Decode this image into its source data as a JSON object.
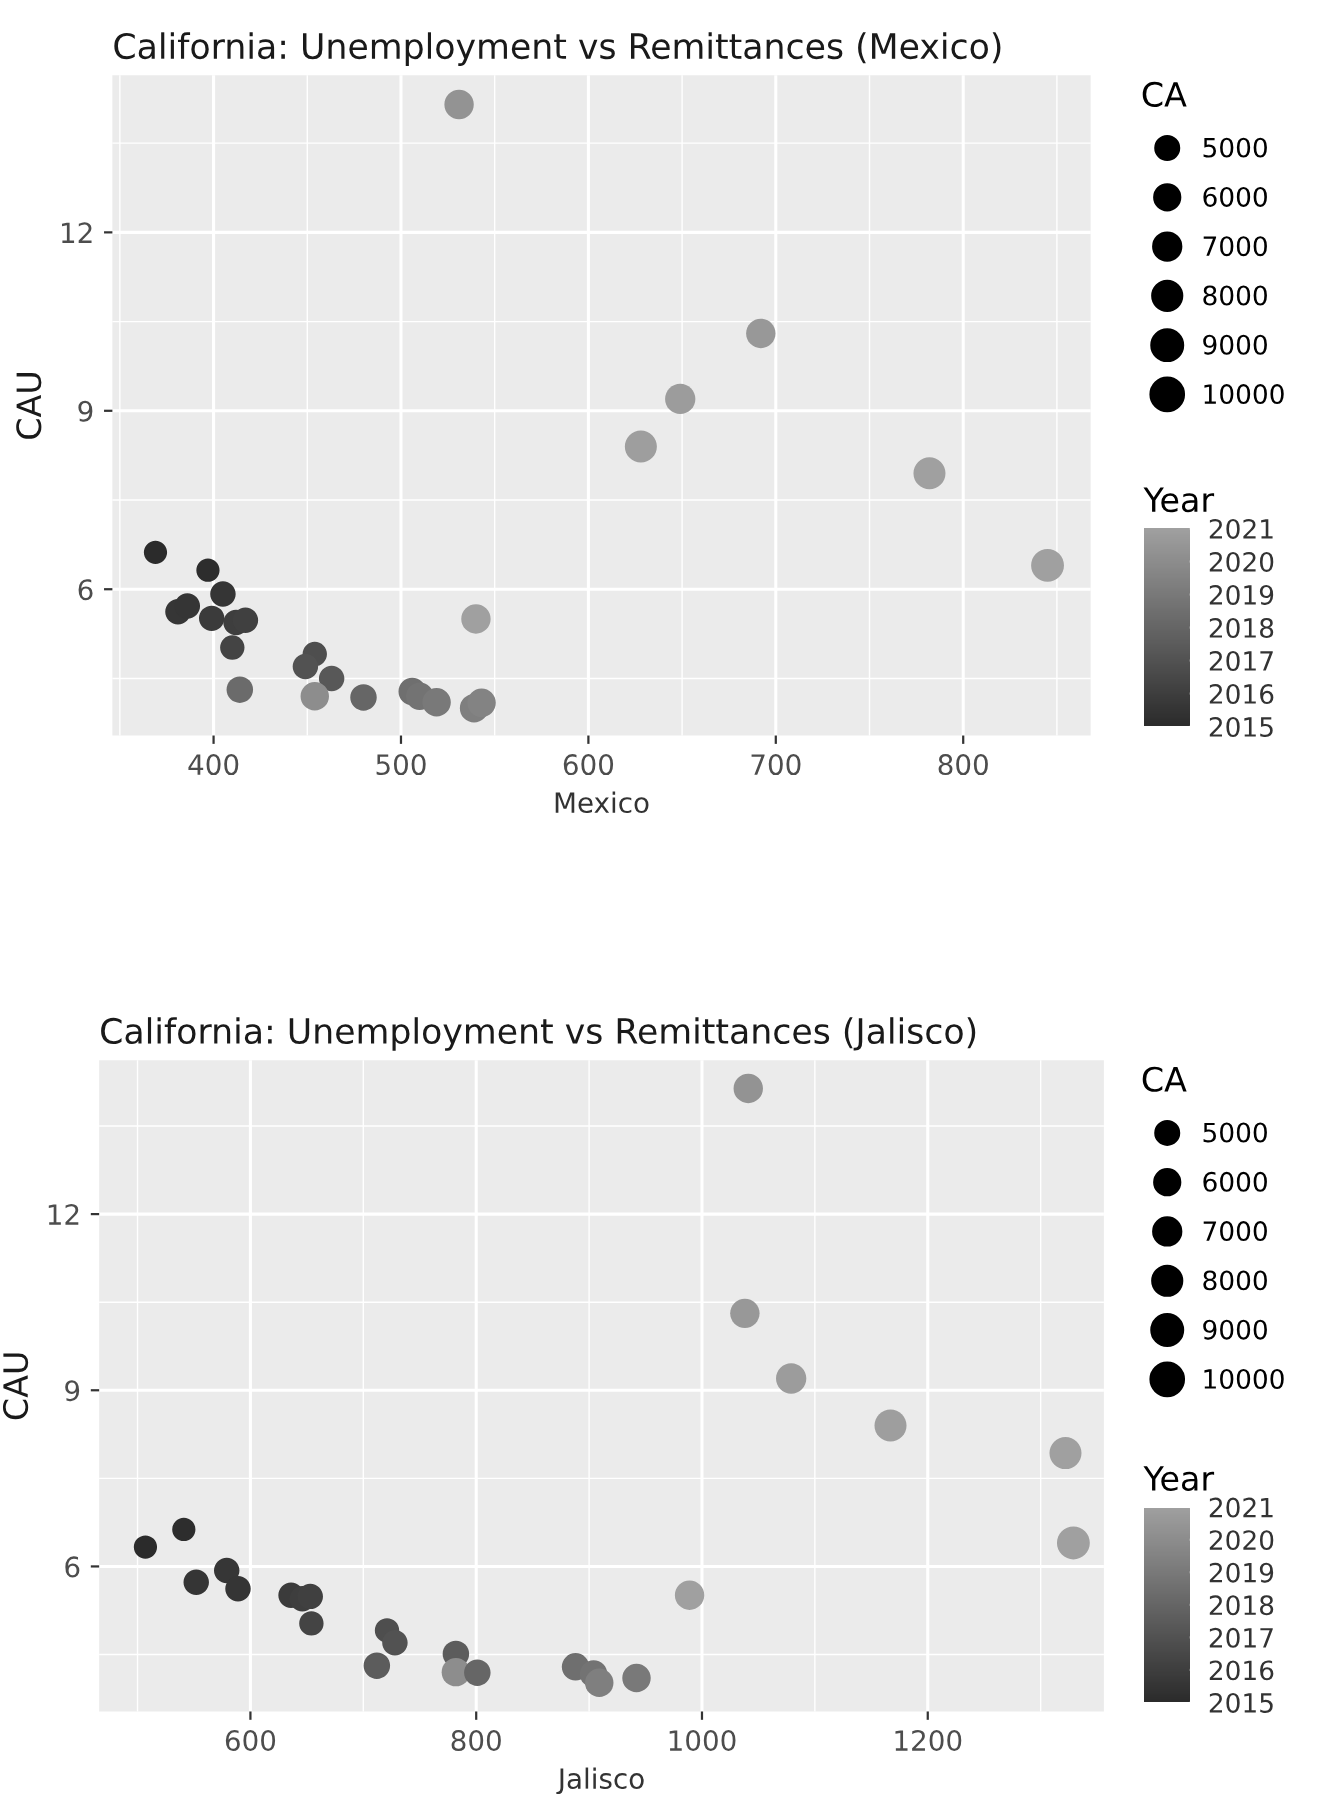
{
  "chart_data": [
    {
      "type": "bubble",
      "title": "California: Unemployment vs Remittances (Mexico)",
      "xlabel": "Mexico",
      "ylabel": "CAU",
      "legend_title": "CA",
      "clabel": "Year",
      "grid": true,
      "x": [
        531,
        692,
        649,
        628,
        782,
        845,
        540,
        369,
        397,
        405,
        381,
        386,
        399,
        412,
        417,
        410,
        454,
        449,
        463,
        414,
        454,
        480,
        506,
        510,
        519,
        539,
        543
      ],
      "values": [
        14.15,
        10.3,
        9.2,
        8.4,
        7.95,
        6.4,
        5.5,
        6.62,
        6.32,
        5.92,
        5.62,
        5.72,
        5.51,
        5.44,
        5.48,
        5.02,
        4.91,
        4.7,
        4.5,
        4.31,
        4.2,
        4.18,
        4.28,
        4.2,
        4.1,
        4.0,
        4.09
      ],
      "sizes": [
        8000,
        8000,
        8500,
        9500,
        9500,
        10000,
        8000,
        5000,
        5000,
        6000,
        6000,
        6000,
        6000,
        6000,
        6000,
        5500,
        5500,
        6000,
        6000,
        6500,
        7500,
        6500,
        7000,
        7000,
        7500,
        7500,
        7500
      ],
      "cvalues": [
        2020.3,
        2020.6,
        2020.8,
        2020.9,
        2021,
        2021,
        2021,
        2015,
        2015.1,
        2015.5,
        2015.6,
        2015.5,
        2015.8,
        2016,
        2016.1,
        2016.3,
        2016.8,
        2017,
        2017.3,
        2018.3,
        2020,
        2018,
        2018.5,
        2018.7,
        2019,
        2019.3,
        2019.5
      ],
      "size_legend": [
        5000,
        6000,
        7000,
        8000,
        9000,
        10000
      ],
      "clim": [
        2015,
        2021
      ],
      "cticks": [
        2015,
        2016,
        2017,
        2018,
        2019,
        2020,
        2021
      ],
      "xlim": [
        346,
        868
      ],
      "ylim": [
        3.54,
        14.64
      ],
      "xticks": [
        400,
        500,
        600,
        700,
        800
      ],
      "yticks": [
        6,
        9,
        12
      ]
    },
    {
      "type": "bubble",
      "title": "California: Unemployment vs Remittances (Jalisco)",
      "xlabel": "Jalisco",
      "ylabel": "CAU",
      "legend_title": "CA",
      "clabel": "Year",
      "grid": true,
      "x": [
        1041,
        1038,
        1079,
        1167,
        1322,
        1329,
        989,
        507,
        541,
        552,
        579,
        589,
        636,
        646,
        653,
        654,
        721,
        728,
        712,
        782,
        782,
        801,
        888,
        904,
        909,
        942
      ],
      "values": [
        14.14,
        10.31,
        9.2,
        8.4,
        7.93,
        6.4,
        5.51,
        6.33,
        6.63,
        5.73,
        5.93,
        5.62,
        5.51,
        5.45,
        5.49,
        5.03,
        4.91,
        4.7,
        4.31,
        4.51,
        4.2,
        4.19,
        4.29,
        4.17,
        4.02,
        4.1
      ],
      "sizes": [
        8000,
        8000,
        8500,
        9500,
        9500,
        10000,
        8000,
        5000,
        5000,
        6000,
        6000,
        6000,
        6000,
        6000,
        6000,
        5500,
        5500,
        6000,
        6500,
        6500,
        7500,
        6500,
        7000,
        7000,
        7500,
        7500
      ],
      "cvalues": [
        2020.3,
        2020.6,
        2020.8,
        2020.9,
        2021,
        2021,
        2021,
        2015,
        2015.1,
        2015.5,
        2015.6,
        2015.5,
        2015.8,
        2016,
        2016.1,
        2016.3,
        2016.8,
        2017,
        2017.5,
        2017.5,
        2020,
        2018,
        2018.5,
        2018.7,
        2019.3,
        2019
      ],
      "size_legend": [
        5000,
        6000,
        7000,
        8000,
        9000,
        10000
      ],
      "clim": [
        2015,
        2021
      ],
      "cticks": [
        2015,
        2016,
        2017,
        2018,
        2019,
        2020,
        2021
      ],
      "xlim": [
        466,
        1356
      ],
      "ylim": [
        3.53,
        14.62
      ],
      "xticks": [
        600,
        800,
        1000,
        1200
      ],
      "yticks": [
        6,
        9,
        12
      ]
    }
  ]
}
